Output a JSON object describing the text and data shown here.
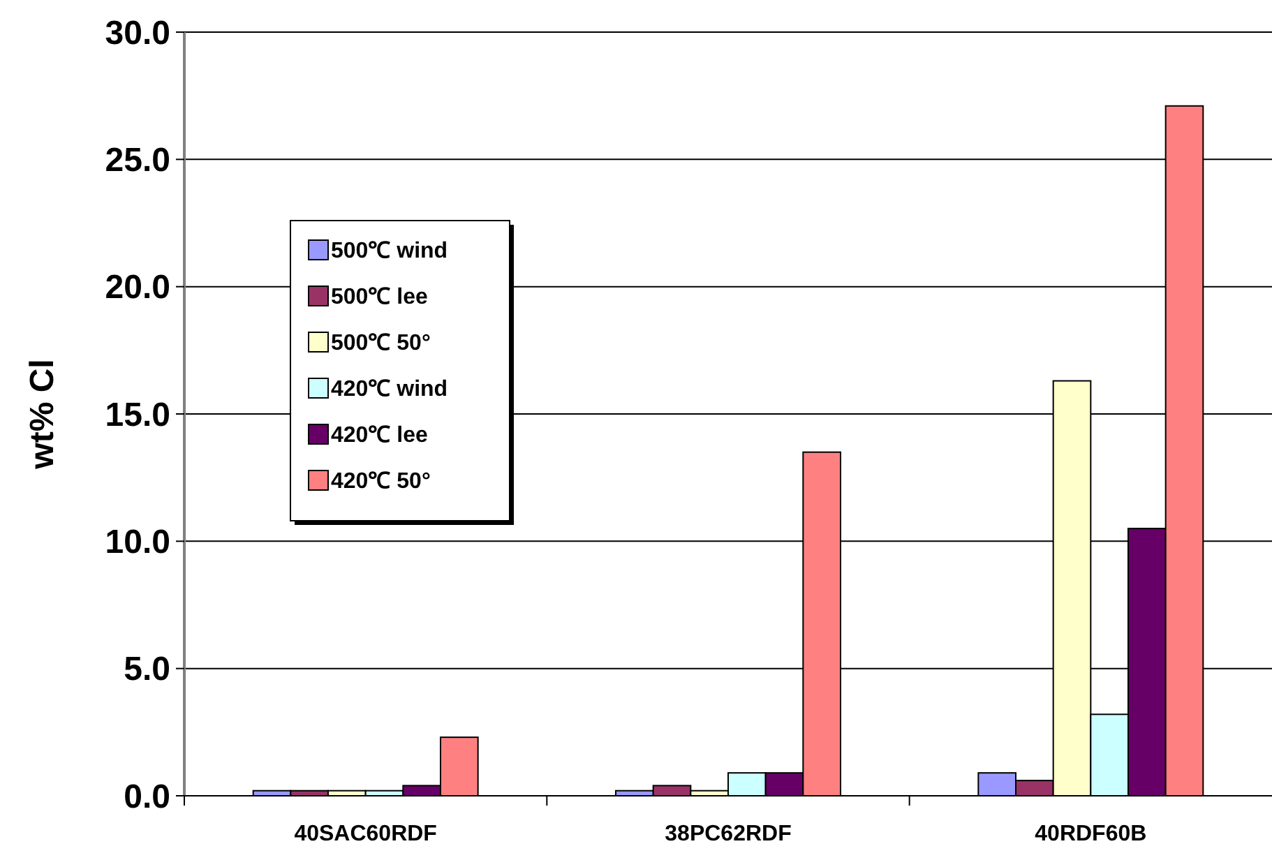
{
  "chart_data": {
    "type": "bar",
    "ylabel": "wt% Cl",
    "categories": [
      "40SAC60RDF",
      "38PC62RDF",
      "40RDF60B"
    ],
    "series": [
      {
        "name": "500℃ wind",
        "color": "#9999ff",
        "values": [
          0.2,
          0.2,
          0.9
        ]
      },
      {
        "name": "500℃ lee",
        "color": "#993366",
        "values": [
          0.2,
          0.4,
          0.6
        ]
      },
      {
        "name": "500℃ 50°",
        "color": "#ffffcc",
        "values": [
          0.2,
          0.2,
          16.3
        ]
      },
      {
        "name": "420℃ wind",
        "color": "#ccffff",
        "values": [
          0.2,
          0.9,
          3.2
        ]
      },
      {
        "name": "420℃ lee",
        "color": "#660066",
        "values": [
          0.4,
          0.9,
          10.5
        ]
      },
      {
        "name": "420℃ 50°",
        "color": "#ff8080",
        "values": [
          2.3,
          13.5,
          27.1
        ]
      }
    ],
    "ylim": [
      0,
      30
    ],
    "yticks": [
      {
        "value": 0,
        "label": "0.0"
      },
      {
        "value": 5,
        "label": "5.0"
      },
      {
        "value": 10,
        "label": "10.0"
      },
      {
        "value": 15,
        "label": "15.0"
      },
      {
        "value": 20,
        "label": "20.0"
      },
      {
        "value": 25,
        "label": "25.0"
      },
      {
        "value": 30,
        "label": "30.0"
      }
    ],
    "grid": "y",
    "legend": "left"
  }
}
